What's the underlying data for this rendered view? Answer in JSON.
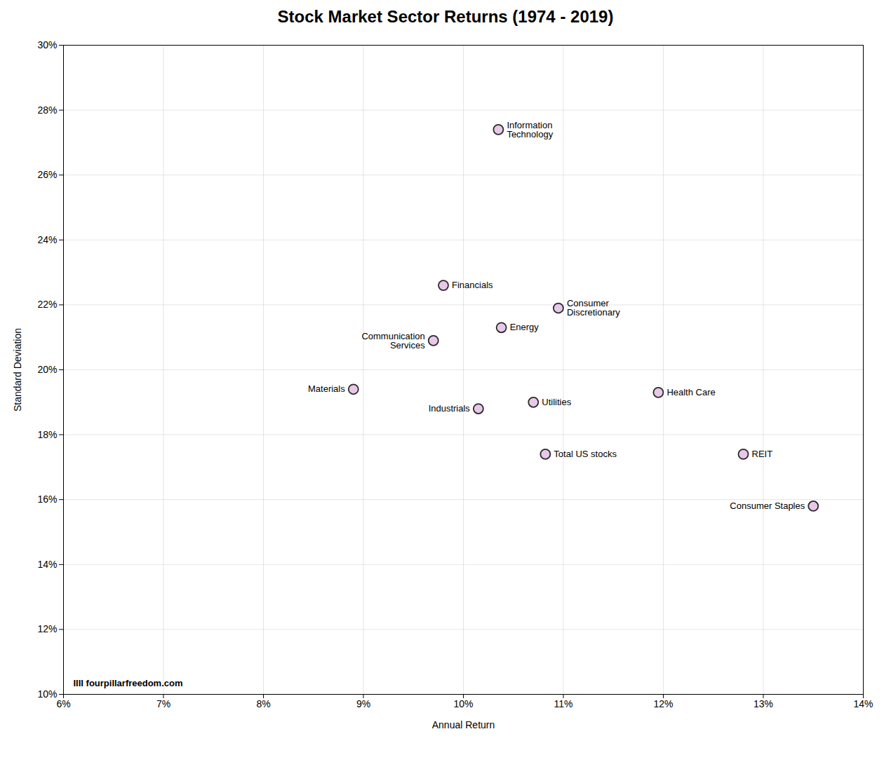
{
  "chart_data": {
    "type": "scatter",
    "title": "Stock Market Sector Returns (1974 - 2019)",
    "xlabel": "Annual Return",
    "ylabel": "Standard Deviation",
    "labels": [
      "Information\nTechnology",
      "Financials",
      "Consumer\nDiscretionary",
      "Communication\nServices",
      "Energy",
      "Materials",
      "Industrials",
      "Utilities",
      "Health Care",
      "Total US stocks",
      "REIT",
      "Consumer Staples"
    ],
    "x": [
      0.1035,
      0.098,
      0.1095,
      0.097,
      0.1038,
      0.089,
      0.1015,
      0.107,
      0.1195,
      0.1082,
      0.128,
      0.135
    ],
    "values": [
      0.274,
      0.226,
      0.219,
      0.209,
      0.213,
      0.194,
      0.188,
      0.19,
      0.193,
      0.174,
      0.174,
      0.158
    ],
    "color": "#e8c8e8",
    "xlim": [
      0.06,
      0.14
    ],
    "ylim": [
      0.1,
      0.3
    ],
    "xticks": [
      {
        "value": 0.06,
        "label": "6%"
      },
      {
        "value": 0.07,
        "label": "7%"
      },
      {
        "value": 0.08,
        "label": "8%"
      },
      {
        "value": 0.09,
        "label": "9%"
      },
      {
        "value": 0.1,
        "label": "10%"
      },
      {
        "value": 0.11,
        "label": "11%"
      },
      {
        "value": 0.12,
        "label": "12%"
      },
      {
        "value": 0.13,
        "label": "13%"
      },
      {
        "value": 0.14,
        "label": "14%"
      }
    ],
    "yticks": [
      {
        "value": 0.1,
        "label": "10%"
      },
      {
        "value": 0.12,
        "label": "12%"
      },
      {
        "value": 0.14,
        "label": "14%"
      },
      {
        "value": 0.16,
        "label": "16%"
      },
      {
        "value": 0.18,
        "label": "18%"
      },
      {
        "value": 0.2,
        "label": "20%"
      },
      {
        "value": 0.22,
        "label": "22%"
      },
      {
        "value": 0.24,
        "label": "24%"
      },
      {
        "value": 0.26,
        "label": "26%"
      },
      {
        "value": 0.28,
        "label": "28%"
      },
      {
        "value": 0.3,
        "label": "30%"
      }
    ],
    "annotations": [
      "IIII fourpillarfreedom.com"
    ],
    "grid": true
  }
}
